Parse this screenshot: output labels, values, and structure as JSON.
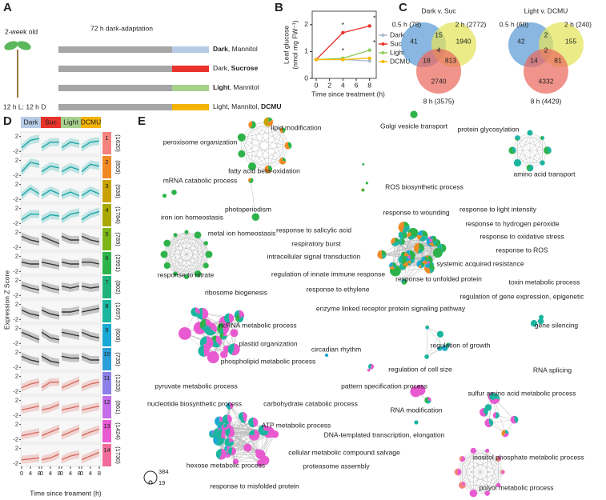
{
  "panel_a": {
    "label": "A",
    "age": "2-week old",
    "photoperiod": "12 h L: 12 h D",
    "header": "72 h dark-adaptation",
    "rows": [
      {
        "color": "#b7cbe6",
        "text": [
          {
            "t": "Dark",
            "bold": true
          },
          {
            "t": ", Mannitol",
            "bold": false
          }
        ]
      },
      {
        "color": "#e8322a",
        "text": [
          {
            "t": "Dark, ",
            "bold": false
          },
          {
            "t": "Sucrose",
            "bold": true
          }
        ]
      },
      {
        "color": "#a8d08d",
        "text": [
          {
            "t": "Light",
            "bold": true
          },
          {
            "t": ", Mannitol",
            "bold": false
          }
        ]
      },
      {
        "color": "#f4b400",
        "text": [
          {
            "t": "Light, Mannitol, ",
            "bold": false
          },
          {
            "t": "DCMU",
            "bold": true
          }
        ]
      }
    ]
  },
  "chart_data": {
    "type": "line",
    "label": "B",
    "y_label": [
      "Leaf glucose",
      "(nmol mg FW⁻¹)"
    ],
    "x_label": "Time since treatment (h)",
    "x": [
      0,
      4,
      8
    ],
    "xlim": [
      -0.6,
      9
    ],
    "xticks": [
      0,
      2,
      4,
      6,
      8
    ],
    "ylim": [
      0,
      2.5
    ],
    "yticks": [
      0,
      1,
      2
    ],
    "series": [
      {
        "name": "Dark",
        "color": "#a9b9d0",
        "values": [
          0.7,
          0.7,
          0.65
        ]
      },
      {
        "name": "Suc",
        "color": "#e8322a",
        "values": [
          0.7,
          1.7,
          1.95
        ],
        "stars": [
          null,
          "*",
          "*"
        ]
      },
      {
        "name": "Light",
        "color": "#8fce5a",
        "values": [
          0.7,
          0.75,
          1.05
        ],
        "stars": [
          null,
          "*",
          "*"
        ]
      },
      {
        "name": "DCMU",
        "color": "#f5b800",
        "values": [
          0.7,
          0.7,
          0.75
        ]
      }
    ]
  },
  "panel_c": {
    "label": "C",
    "venns": [
      {
        "title": "Dark v. Suc",
        "sets": [
          "0.5 h (78)",
          "2 h (2772)",
          "8 h (3575)"
        ],
        "set_colors": [
          "#5b9bd5",
          "#e3e35a",
          "#ea6a5e"
        ],
        "regions": {
          "a": 41,
          "b": 1940,
          "c": 2740,
          "ab": 15,
          "ac": 18,
          "bc": 813,
          "abc": 4
        }
      },
      {
        "title": "Light v. DCMU",
        "sets": [
          "0.5 h (60)",
          "2 h (240)",
          "8 h (4429)"
        ],
        "set_colors": [
          "#5b9bd5",
          "#e3e35a",
          "#ea6a5e"
        ],
        "regions": {
          "a": 42,
          "b": 155,
          "c": 4332,
          "ab": 2,
          "ac": 14,
          "bc": 81,
          "abc": 2
        }
      }
    ]
  },
  "panel_d": {
    "label": "D",
    "y_label": "Expression Z Score",
    "x_label": "Time since treament (h)",
    "conditions": [
      {
        "name": "Dark",
        "color": "#b7cbe6"
      },
      {
        "name": "Suc",
        "color": "#e8322a"
      },
      {
        "name": "Light",
        "color": "#a8d08d"
      },
      {
        "name": "DCMU",
        "color": "#f4b400"
      }
    ],
    "times": [
      0,
      4,
      8
    ],
    "xlim": [
      0,
      8
    ],
    "ylim": [
      -3,
      3
    ],
    "yticks": [
      2,
      -2
    ],
    "clusters": [
      {
        "id": 1,
        "count": "(1620)",
        "color": "#f4837d",
        "line_color": "#1aa6a6",
        "profile": [
          -1,
          1,
          1.5,
          -1,
          0.5,
          0.5,
          -1,
          0.5,
          0,
          -1,
          0.5,
          0.8
        ]
      },
      {
        "id": 2,
        "count": "(859)",
        "color": "#f08a24",
        "line_color": "#1aa6a6",
        "profile": [
          -1,
          1.5,
          1,
          -1,
          0.5,
          0,
          -1,
          0.3,
          -0.5,
          -1,
          1,
          0.5
        ]
      },
      {
        "id": 3,
        "count": "(938)",
        "color": "#c8a200",
        "line_color": "#1aa6a6",
        "profile": [
          -1,
          1,
          -0.5,
          -1,
          0.5,
          -0.5,
          -1,
          0,
          -1,
          -1,
          0.5,
          -0.5
        ]
      },
      {
        "id": 4,
        "count": "(1784)",
        "color": "#a8a800",
        "line_color": "#1aa6a6",
        "profile": [
          -1,
          0.5,
          0.5,
          -1,
          0.3,
          0,
          -1,
          0.5,
          1,
          -1,
          0.5,
          1.2
        ]
      },
      {
        "id": 5,
        "count": "(789)",
        "color": "#7cb518",
        "line_color": "#333333",
        "profile": [
          1,
          0,
          -0.5,
          1,
          0,
          -1,
          1,
          0,
          0,
          1,
          0,
          -0.5
        ]
      },
      {
        "id": 6,
        "count": "(2991)",
        "color": "#2db34a",
        "line_color": "#333333",
        "profile": [
          0.5,
          0,
          0,
          0.5,
          0,
          -0.5,
          0.5,
          0,
          0,
          0.5,
          0.5,
          0
        ]
      },
      {
        "id": 7,
        "count": "(802)",
        "color": "#1fb37a",
        "line_color": "#333333",
        "profile": [
          0.8,
          0,
          -0.5,
          0.8,
          0,
          -0.5,
          0.5,
          0,
          0.5,
          0.5,
          0,
          0.3
        ]
      },
      {
        "id": 8,
        "count": "(1697)",
        "color": "#1bb5a0",
        "line_color": "#333333",
        "profile": [
          0.5,
          -0.5,
          -1,
          0.5,
          -0.5,
          -1,
          0,
          0,
          0.5,
          0,
          0.5,
          1
        ]
      },
      {
        "id": 9,
        "count": "(608)",
        "color": "#1aa8d4",
        "line_color": "#333333",
        "profile": [
          1,
          0,
          -1,
          1,
          -0.5,
          -1,
          1,
          0.5,
          0,
          1,
          0,
          -0.5
        ]
      },
      {
        "id": 10,
        "count": "(735)",
        "color": "#2a9fd8",
        "line_color": "#333333",
        "profile": [
          1,
          0,
          -0.5,
          1,
          -0.3,
          -0.8,
          1,
          0.5,
          0.5,
          1,
          0,
          0
        ]
      },
      {
        "id": 11,
        "count": "(1233)",
        "color": "#8c7fe8",
        "line_color": "#d9695f",
        "profile": [
          -1,
          0,
          0.5,
          -1,
          0.5,
          0.5,
          -1,
          0,
          1,
          -1,
          0,
          0.5
        ]
      },
      {
        "id": 12,
        "count": "(861)",
        "color": "#c56ce8",
        "line_color": "#d9695f",
        "profile": [
          -0.5,
          0,
          0.5,
          -0.5,
          0,
          1,
          -0.5,
          0,
          0.5,
          -0.5,
          0,
          0.5
        ]
      },
      {
        "id": 13,
        "count": "(1424)",
        "color": "#e85ad0",
        "line_color": "#d9695f",
        "profile": [
          -1,
          -0.5,
          0,
          -1,
          0,
          1,
          -1,
          0,
          1,
          -1,
          0,
          0.8
        ]
      },
      {
        "id": 14,
        "count": "(1730)",
        "color": "#f06c9a",
        "line_color": "#d9695f",
        "profile": [
          -1,
          -0.8,
          -0.5,
          -1,
          -0.5,
          0.5,
          -1,
          0,
          0.5,
          -1,
          0,
          1
        ]
      }
    ]
  },
  "panel_e": {
    "label": "E",
    "size_legend": [
      384,
      19
    ],
    "terms": [
      "peroxisome organization",
      "lipid modification",
      "fatty acid beta-oxidation",
      "Golgi vesicle transport",
      "protein glycosylation",
      "amino acid transport",
      "mRNA catabolic process",
      "ROS biosynthetic process",
      "photoperiodism",
      "iron ion homeostasis",
      "metal ion homeostasis",
      "response to nitrate",
      "response to wounding",
      "response to light intensity",
      "response to salicylic acid",
      "response to hydrogen peroxide",
      "respiratory burst",
      "response to oxidative stress",
      "intracellular signal transduction",
      "response to ROS",
      "systemic acquired resistance",
      "regulation of innate immune response",
      "response to unfolded protein",
      "toxin metabolic process",
      "response to ethylene",
      "regulation of gene expression, epigenetic",
      "enzyme linked receptor protein signaling pathway",
      "ribosome biogenesis",
      "ncRNA metabolic process",
      "plastid organization",
      "phospholipid metabolic process",
      "pyruvate metabolic process",
      "gene silencing",
      "circadian rhythm",
      "regulation of growth",
      "regulation of cell size",
      "pattern specification process",
      "RNA splicing",
      "sulfur amino acid metabolic process",
      "RNA modification",
      "nucleotide biosynthetic process",
      "carbohydrate catabolic process",
      "ATP metabolic process",
      "DNA-templated transcription, elongation",
      "cellular metabolic compound salvage",
      "hexose metabolic process",
      "proteasome assembly",
      "response to misfolded protein",
      "inositol phosphate metabolic process",
      "polyol metabolic process"
    ]
  }
}
